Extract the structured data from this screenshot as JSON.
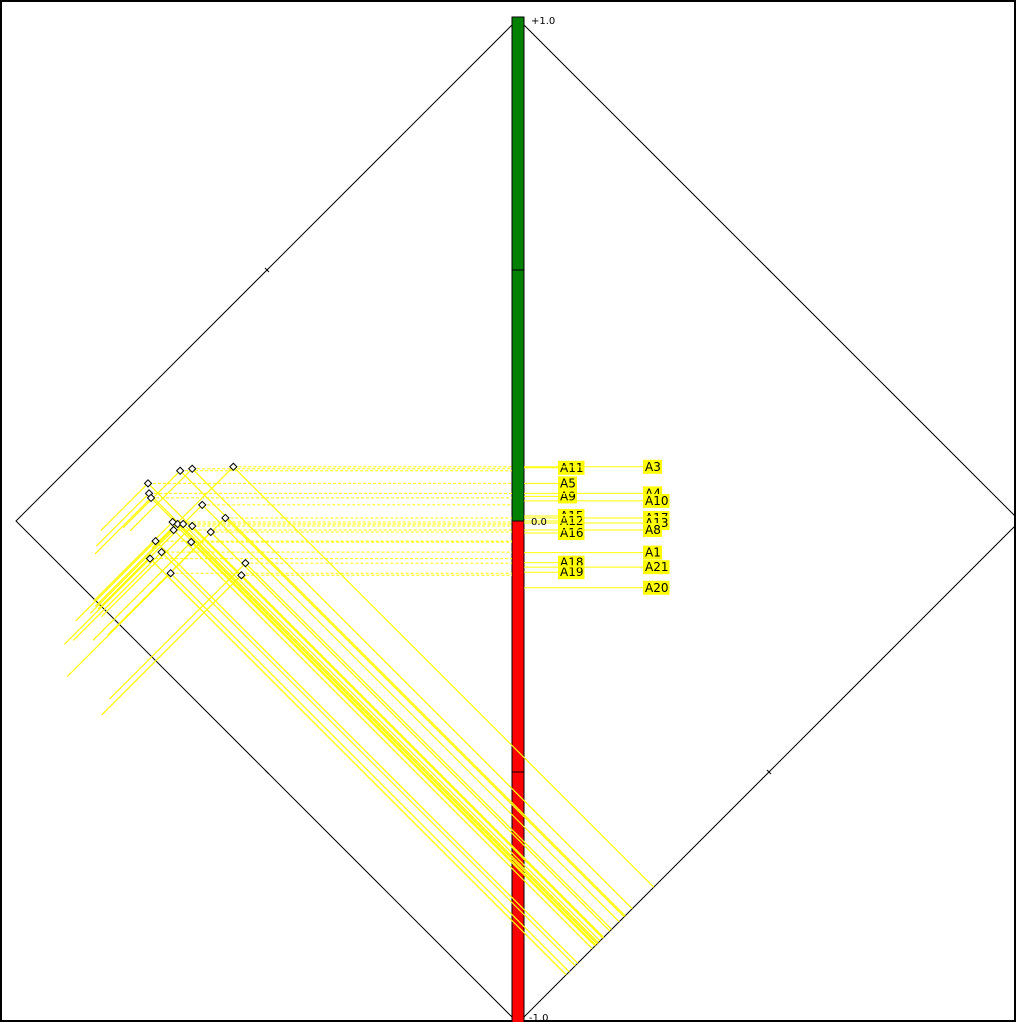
{
  "chart_data": {
    "type": "scatter",
    "scale": {
      "top_label": "+1.0",
      "center_label": "0.0",
      "bottom_label": "-1.0"
    },
    "colors": {
      "positive": "#008000",
      "negative": "#ff0000",
      "projection": "#ffff00",
      "label_bg": "#ffff00",
      "frame": "#000000"
    },
    "points": [
      {
        "x": -0.551,
        "y": -0.108
      },
      {
        "x": -0.733,
        "y": -0.075
      },
      {
        "x": -0.692,
        "y": -0.104
      },
      {
        "x": -0.71,
        "y": -0.062
      },
      {
        "x": -0.543,
        "y": -0.084
      },
      {
        "x": -0.678,
        "y": -0.006
      },
      {
        "x": -0.688,
        "y": -0.002
      },
      {
        "x": -0.667,
        "y": -0.006
      },
      {
        "x": -0.612,
        "y": -0.022
      },
      {
        "x": -0.651,
        "y": -0.042
      },
      {
        "x": -0.649,
        "y": -0.01
      },
      {
        "x": -0.722,
        "y": -0.04
      },
      {
        "x": -0.686,
        "y": -0.018
      },
      {
        "x": -0.629,
        "y": 0.032
      },
      {
        "x": -0.735,
        "y": 0.055
      },
      {
        "x": -0.731,
        "y": 0.046
      },
      {
        "x": -0.673,
        "y": 0.1
      },
      {
        "x": -0.737,
        "y": 0.075
      },
      {
        "x": -0.649,
        "y": 0.104
      },
      {
        "x": -0.567,
        "y": 0.108
      },
      {
        "x": -0.583,
        "y": 0.006
      }
    ],
    "labels": {
      "left": [
        {
          "text": "A11",
          "y": 0.106
        },
        {
          "text": "A5",
          "y": 0.075
        },
        {
          "text": "A9",
          "y": 0.049
        },
        {
          "text": "A15",
          "y": 0.01
        },
        {
          "text": "A12",
          "y": 0.0
        },
        {
          "text": "A16",
          "y": -0.024
        },
        {
          "text": "A18",
          "y": -0.083
        },
        {
          "text": "A19",
          "y": -0.102
        }
      ],
      "right": [
        {
          "text": "A3",
          "y": 0.108
        },
        {
          "text": "A4",
          "y": 0.055
        },
        {
          "text": "A10",
          "y": 0.04
        },
        {
          "text": "A17",
          "y": 0.006
        },
        {
          "text": "A13",
          "y": -0.004
        },
        {
          "text": "A8",
          "y": -0.018
        },
        {
          "text": "A1",
          "y": -0.063
        },
        {
          "text": "A21",
          "y": -0.092
        },
        {
          "text": "A20",
          "y": -0.133
        }
      ]
    }
  }
}
